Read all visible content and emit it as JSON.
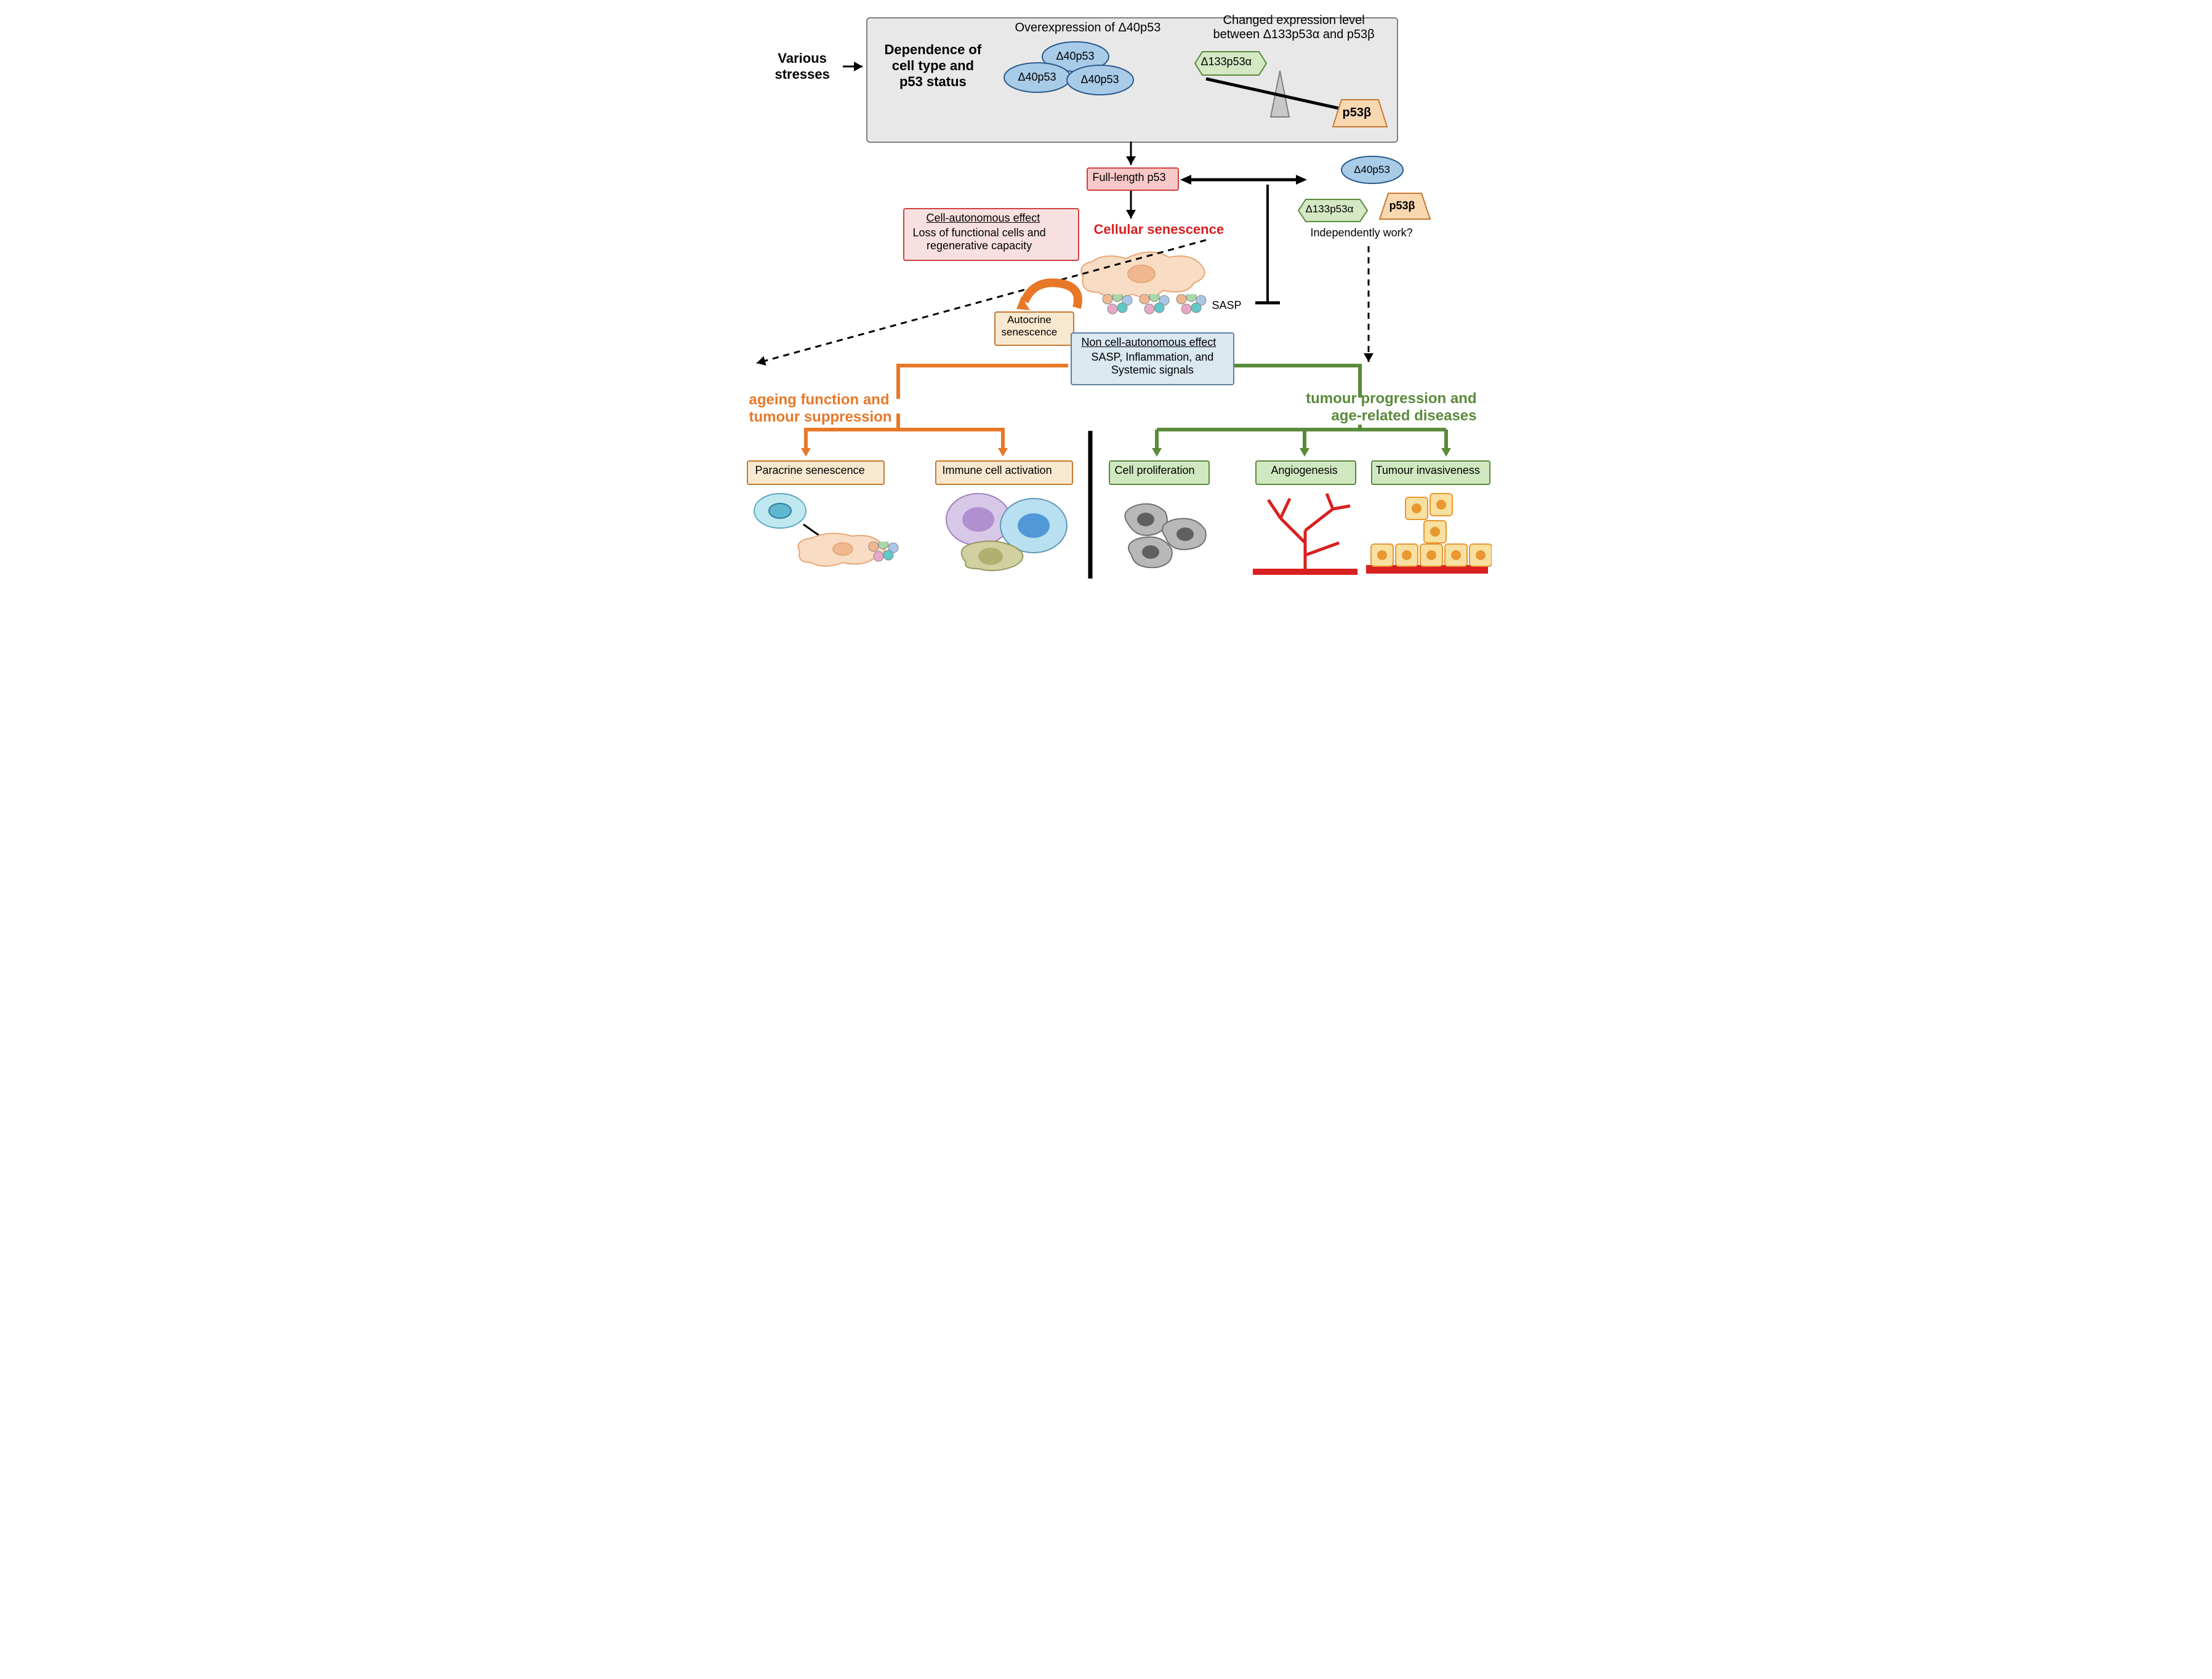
{
  "text": {
    "variousStresses": "Various\nstresses",
    "dependence": "Dependence of\ncell type and\np53 status",
    "overexpression": "Overexpression of Δ40p53",
    "changedExpr": "Changed expression level\nbetween Δ133p53α and p53β",
    "d40": "Δ40p53",
    "d133": "Δ133p53α",
    "p53b": "p53β",
    "fullLength": "Full-length p53",
    "cellSenescence": "Cellular senescence",
    "independent": "Independently work?",
    "cellAutoTitle": "Cell-autonomous effect",
    "cellAutoBody": "Loss of functional cells and\nregenerative capacity",
    "autocrine": "Autocrine\nsenescence",
    "sasp": "SASP",
    "nonCellTitle": "Non cell-autonomous effect",
    "nonCellBody": "SASP, Inflammation, and\nSystemic signals",
    "leftBranch": "ageing function and\ntumour suppression",
    "rightBranch": "tumour progression and\nage-related diseases",
    "paracrine": "Paracrine senescence",
    "immune": "Immune cell activation",
    "cellProlif": "Cell proliferation",
    "angio": "Angiogenesis",
    "tumourInv": "Tumour invasiveness"
  },
  "colors": {
    "boxGrey": "#e8e8e8",
    "boxGreyBorder": "#808080",
    "blueFill": "#a8cbe8",
    "blueStroke": "#2a5a8a",
    "greenFill": "#d4e8c4",
    "greenStroke": "#5a8a3a",
    "orangeFill": "#f8d8b0",
    "orangeStroke": "#c87830",
    "pinkFill": "#f8c8c8",
    "pinkStroke": "#d04040",
    "lightPinkFill": "#f8e0e0",
    "lightBlueFill": "#dae8f0",
    "lightBlueStroke": "#6080a0",
    "lightOrangeFill": "#f8e8d0",
    "lightGreenFill": "#d0e8c0",
    "orange": "#e87828",
    "green": "#5a8a3a",
    "red": "#d82020",
    "black": "#000000",
    "cellPink": "#f8dcc4",
    "cellPinkStroke": "#e8a878",
    "greyCell": "#b8b8b8",
    "greyCellStroke": "#707070",
    "darkGrey": "#606060",
    "redVessel": "#d82020",
    "tumorYellow": "#f8e0a0",
    "tumorOrange": "#e89830"
  },
  "fonts": {
    "small": 17,
    "med": 20,
    "large": 22,
    "xlarge": 24
  }
}
